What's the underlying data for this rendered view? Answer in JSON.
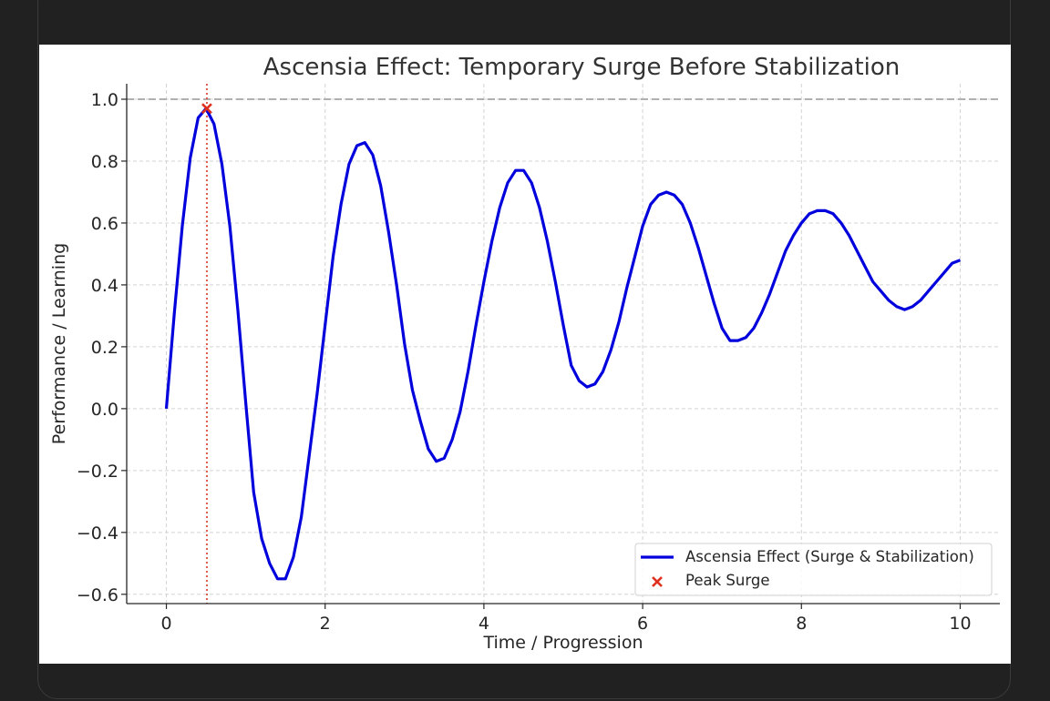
{
  "chart_data": {
    "type": "line",
    "title": "Ascensia Effect: Temporary Surge Before Stabilization",
    "xlabel": "Time / Progression",
    "ylabel": "Performance / Learning",
    "xlim": [
      -0.5,
      10.5
    ],
    "ylim": [
      -0.63,
      1.05
    ],
    "xticks": [
      0,
      2,
      4,
      6,
      8,
      10
    ],
    "yticks": [
      1.0,
      0.8,
      0.6,
      0.4,
      0.2,
      0.0,
      -0.2,
      -0.4,
      -0.6
    ],
    "grid": true,
    "legend_position": "bottom-right",
    "series": [
      {
        "name": "Ascensia Effect (Surge & Stabilization)",
        "color": "#0000dd",
        "style": "solid",
        "x": [
          0,
          0.1,
          0.2,
          0.3,
          0.4,
          0.5,
          0.6,
          0.7,
          0.8,
          0.9,
          1.0,
          1.1,
          1.2,
          1.3,
          1.4,
          1.5,
          1.6,
          1.7,
          1.8,
          1.9,
          2.0,
          2.1,
          2.2,
          2.3,
          2.4,
          2.5,
          2.6,
          2.7,
          2.8,
          2.9,
          3.0,
          3.1,
          3.2,
          3.3,
          3.4,
          3.5,
          3.6,
          3.7,
          3.8,
          3.9,
          4.0,
          4.1,
          4.2,
          4.3,
          4.4,
          4.5,
          4.6,
          4.7,
          4.8,
          4.9,
          5.0,
          5.1,
          5.2,
          5.3,
          5.4,
          5.5,
          5.6,
          5.7,
          5.8,
          5.9,
          6.0,
          6.1,
          6.2,
          6.3,
          6.4,
          6.5,
          6.6,
          6.7,
          6.8,
          6.9,
          7.0,
          7.1,
          7.2,
          7.3,
          7.4,
          7.5,
          7.6,
          7.7,
          7.8,
          7.9,
          8.0,
          8.1,
          8.2,
          8.3,
          8.4,
          8.5,
          8.6,
          8.7,
          8.8,
          8.9,
          9.0,
          9.1,
          9.2,
          9.3,
          9.4,
          9.5,
          9.6,
          9.7,
          9.8,
          9.9,
          10.0
        ],
        "y": [
          0.0,
          0.31,
          0.59,
          0.81,
          0.94,
          0.97,
          0.92,
          0.79,
          0.59,
          0.32,
          0.02,
          -0.27,
          -0.42,
          -0.5,
          -0.55,
          -0.55,
          -0.48,
          -0.35,
          -0.15,
          0.05,
          0.27,
          0.49,
          0.66,
          0.79,
          0.85,
          0.86,
          0.82,
          0.72,
          0.57,
          0.4,
          0.21,
          0.06,
          -0.04,
          -0.13,
          -0.17,
          -0.16,
          -0.1,
          -0.01,
          0.12,
          0.27,
          0.41,
          0.54,
          0.65,
          0.73,
          0.77,
          0.77,
          0.73,
          0.65,
          0.54,
          0.41,
          0.27,
          0.14,
          0.09,
          0.07,
          0.08,
          0.12,
          0.19,
          0.28,
          0.39,
          0.49,
          0.59,
          0.66,
          0.69,
          0.7,
          0.69,
          0.66,
          0.6,
          0.52,
          0.43,
          0.34,
          0.26,
          0.22,
          0.22,
          0.23,
          0.26,
          0.31,
          0.37,
          0.44,
          0.51,
          0.56,
          0.6,
          0.63,
          0.64,
          0.64,
          0.63,
          0.6,
          0.56,
          0.51,
          0.46,
          0.41,
          0.38,
          0.35,
          0.33,
          0.32,
          0.33,
          0.35,
          0.38,
          0.41,
          0.44,
          0.47,
          0.48
        ]
      },
      {
        "name": "Peak Surge",
        "type": "scatter",
        "marker": "x",
        "color": "#e03020",
        "x": [
          0.51
        ],
        "y": [
          0.97
        ]
      }
    ],
    "reference_lines": [
      {
        "orientation": "horizontal",
        "value": 1.0,
        "color": "#b0b0b0",
        "style": "dashed"
      },
      {
        "orientation": "vertical",
        "value": 0.51,
        "color": "#e05a50",
        "style": "dotted"
      }
    ]
  }
}
